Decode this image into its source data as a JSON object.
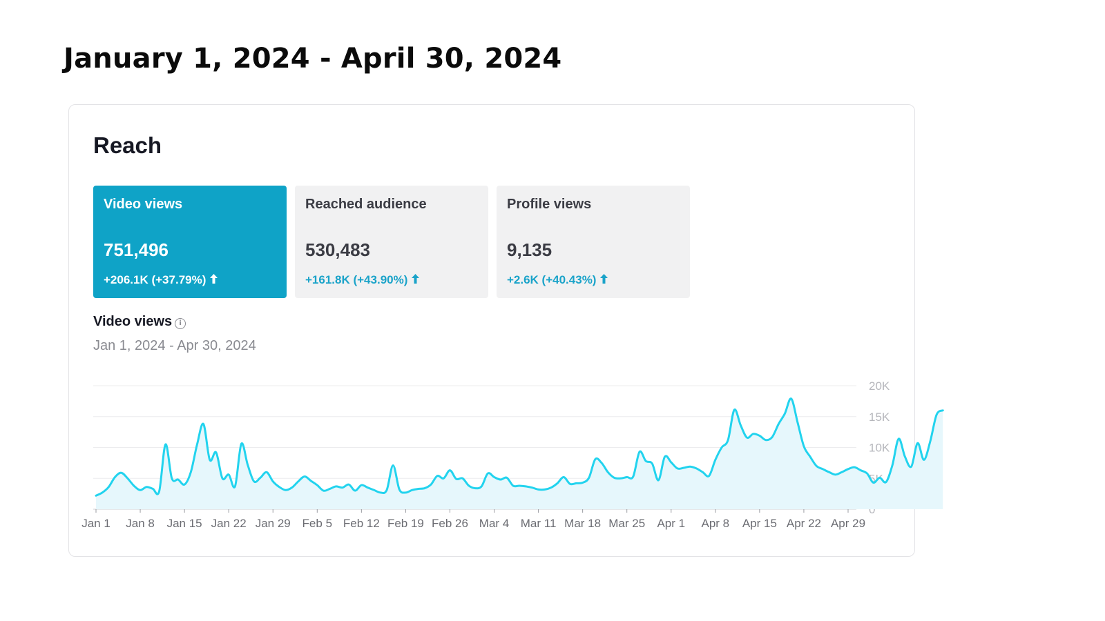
{
  "page_title": "January 1, 2024 - April 30, 2024",
  "card": {
    "title": "Reach",
    "metrics": [
      {
        "label": "Video views",
        "value": "751,496",
        "change": "+206.1K  (+37.79%)",
        "active": true
      },
      {
        "label": "Reached audience",
        "value": "530,483",
        "change": "+161.8K  (+43.90%)",
        "active": false
      },
      {
        "label": "Profile views",
        "value": "9,135",
        "change": "+2.6K  (+40.43%)",
        "active": false
      }
    ],
    "chart_title": "Video views",
    "info_glyph": "i",
    "date_range": "Jan 1, 2024 - Apr 30, 2024"
  },
  "colors": {
    "accent": "#0fa3c7",
    "line": "#22d3ee",
    "area": "#e6f7fc",
    "increase": "#1aa3c9"
  },
  "chart_data": {
    "type": "area",
    "ylim": [
      0,
      20000
    ],
    "ytick_values": [
      0,
      5000,
      10000,
      15000,
      20000
    ],
    "ytick_labels": [
      "0",
      "5K",
      "10K",
      "15K",
      "20K"
    ],
    "xtick_labels": [
      "Jan 1",
      "Jan 8",
      "Jan 15",
      "Jan 22",
      "Jan 29",
      "Feb 5",
      "Feb 12",
      "Feb 19",
      "Feb 26",
      "Mar 4",
      "Mar 11",
      "Mar 18",
      "Mar 25",
      "Apr 1",
      "Apr 8",
      "Apr 15",
      "Apr 22",
      "Apr 29"
    ],
    "grid": true,
    "series": [
      {
        "values": [
          2200,
          2700,
          3600,
          5200,
          5900,
          5000,
          3800,
          3100,
          3600,
          3300,
          2900,
          10500,
          5000,
          4800,
          4000,
          6000,
          10500,
          13800,
          8000,
          9200,
          5000,
          5600,
          3700,
          10600,
          7200,
          4500,
          5100,
          6000,
          4500,
          3600,
          3100,
          3500,
          4500,
          5300,
          4600,
          3900,
          3000,
          3300,
          3700,
          3500,
          4000,
          3000,
          3900,
          3500,
          3100,
          2700,
          3100,
          7100,
          3200,
          2700,
          3100,
          3300,
          3400,
          4000,
          5400,
          5000,
          6300,
          4900,
          5000,
          3800,
          3400,
          3700,
          5800,
          5200,
          4800,
          5100,
          3800,
          3800,
          3700,
          3500,
          3200,
          3200,
          3500,
          4200,
          5200,
          4100,
          4200,
          4300,
          5100,
          8100,
          7500,
          6000,
          5100,
          5000,
          5200,
          5300,
          9300,
          7800,
          7400,
          4700,
          8500,
          7600,
          6600,
          6700,
          6900,
          6600,
          6000,
          5400,
          8000,
          10000,
          11200,
          16100,
          13600,
          11600,
          12200,
          11900,
          11200,
          11700,
          13800,
          15500,
          17900,
          14100,
          10200,
          8500,
          7000,
          6500,
          6000,
          5600,
          6000,
          6500,
          6800,
          6300,
          5800,
          4300,
          5100,
          4400,
          7100,
          11400,
          8500,
          6900,
          10700,
          8000,
          11000,
          15300,
          16000
        ]
      }
    ]
  }
}
